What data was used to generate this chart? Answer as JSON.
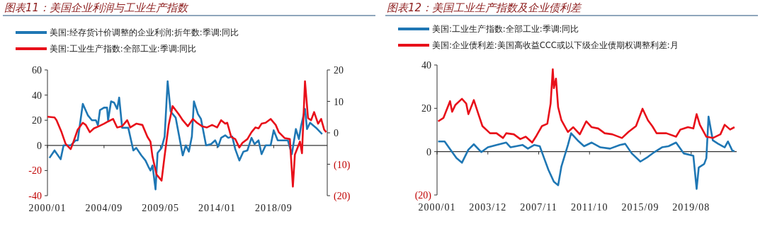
{
  "chart_data": [
    {
      "type": "line",
      "title": "图表11：美国企业利润与工业生产指数",
      "legend": "top left",
      "xlim": [
        "2000-01",
        "2023-02"
      ],
      "xticks": [
        {
          "value": "2000-01",
          "label": "2000/01"
        },
        {
          "value": "2004-09",
          "label": "2004/09"
        },
        {
          "value": "2009-05",
          "label": "2009/05"
        },
        {
          "value": "2014-01",
          "label": "2014/01"
        },
        {
          "value": "2018-09",
          "label": "2018/09"
        }
      ],
      "ylim": [
        -40,
        60
      ],
      "yticks": [
        -40,
        -20,
        0,
        20,
        40,
        60
      ],
      "y2lim": [
        -20,
        20
      ],
      "y2ticks": [
        {
          "value": -20,
          "label": "(20)"
        },
        {
          "value": -10,
          "label": "(10)"
        },
        0,
        10,
        20
      ],
      "series": [
        {
          "name": "美国:经存货计价调整的企业利润:折年数:季调:同比",
          "color": "#1f77b4",
          "x": [
            "2000-03",
            "2000-08",
            "2001-02",
            "2001-05",
            "2001-12",
            "2002-05",
            "2002-07",
            "2002-12",
            "2003-05",
            "2003-09",
            "2004-01",
            "2004-03",
            "2004-05",
            "2004-09",
            "2004-12",
            "2005-01",
            "2005-04",
            "2005-07",
            "2005-10",
            "2005-12",
            "2006-03",
            "2006-09",
            "2007-02",
            "2007-05",
            "2007-10",
            "2008-02",
            "2008-05",
            "2008-07",
            "2008-09",
            "2008-12",
            "2009-02",
            "2009-06",
            "2009-09",
            "2009-12",
            "2010-03",
            "2010-08",
            "2010-11",
            "2011-03",
            "2011-06",
            "2011-09",
            "2011-12",
            "2012-02",
            "2012-06",
            "2012-09",
            "2013-02",
            "2013-07",
            "2013-11",
            "2014-02",
            "2014-05",
            "2014-09",
            "2014-12",
            "2015-04",
            "2015-07",
            "2015-11",
            "2016-03",
            "2016-07",
            "2016-11",
            "2017-02",
            "2017-06",
            "2017-09",
            "2018-01",
            "2018-06",
            "2018-09",
            "2019-01",
            "2019-06",
            "2019-11",
            "2020-03",
            "2020-07",
            "2020-10",
            "2020-12",
            "2021-04",
            "2021-06",
            "2021-09",
            "2022-03",
            "2022-09"
          ],
          "values": [
            -10,
            -4,
            -11,
            0,
            0,
            4,
            4,
            33,
            24,
            20,
            20,
            16,
            28,
            30,
            30,
            20,
            35,
            34,
            29,
            38,
            14,
            14,
            -4,
            -2,
            -8,
            -12,
            -17,
            -20,
            -16,
            -35,
            -6,
            -2,
            7,
            51,
            27,
            22,
            9,
            -8,
            0,
            -5,
            7,
            35,
            25,
            21,
            0,
            1,
            4,
            -1,
            6,
            8,
            6,
            7,
            -3,
            -12,
            -5,
            -4,
            6,
            1,
            4,
            -7,
            0,
            0,
            12,
            4,
            4,
            4,
            -7,
            13,
            5,
            15,
            29,
            13,
            18,
            14,
            9
          ]
        },
        {
          "name": "美国:工业生产指数:全部工业:季调:同比",
          "color": "#e8101a",
          "axis": "y2",
          "x": [
            "2000-01",
            "2000-08",
            "2000-10",
            "2001-03",
            "2001-07",
            "2001-12",
            "2002-02",
            "2002-07",
            "2002-12",
            "2003-03",
            "2003-07",
            "2003-11",
            "2004-04",
            "2004-09",
            "2005-01",
            "2005-06",
            "2005-10",
            "2006-03",
            "2006-08",
            "2006-11",
            "2007-05",
            "2007-11",
            "2008-04",
            "2008-07",
            "2008-09",
            "2009-01",
            "2009-06",
            "2009-09",
            "2010-01",
            "2010-05",
            "2010-11",
            "2011-03",
            "2011-08",
            "2012-01",
            "2012-05",
            "2012-10",
            "2013-03",
            "2013-08",
            "2014-01",
            "2014-05",
            "2014-09",
            "2014-11",
            "2015-03",
            "2015-07",
            "2015-11",
            "2016-02",
            "2016-07",
            "2016-11",
            "2017-03",
            "2017-06",
            "2017-09",
            "2018-01",
            "2018-06",
            "2018-11",
            "2019-02",
            "2019-08",
            "2020-01",
            "2020-04",
            "2020-06",
            "2020-11",
            "2021-01",
            "2021-04",
            "2021-07",
            "2021-10",
            "2022-01",
            "2022-05",
            "2022-08",
            "2022-11",
            "2023-01"
          ],
          "values": [
            5.1,
            4.9,
            4,
            0.2,
            -3.5,
            -5.2,
            -3.5,
            1,
            3.2,
            2.5,
            0.2,
            1.4,
            2.1,
            2.9,
            3.6,
            4.4,
            1.7,
            2.1,
            4,
            1.7,
            2.9,
            2.5,
            -1.3,
            -2.8,
            -7.6,
            -13.3,
            -15.2,
            -7.3,
            2.5,
            8.5,
            5.9,
            4,
            2.1,
            4.4,
            3.2,
            2.1,
            1.7,
            2.5,
            1.7,
            4,
            2.9,
            3.2,
            -1.3,
            -2,
            -4.7,
            -3.2,
            -2,
            0.2,
            1.7,
            1.4,
            2.9,
            3.2,
            4.4,
            2.5,
            0.2,
            -1.7,
            -2,
            -17.1,
            -6.9,
            -2.8,
            -6.5,
            16.4,
            4.7,
            4,
            6.6,
            2.9,
            4.4,
            1,
            0.2
          ]
        }
      ]
    },
    {
      "type": "line",
      "title": "图表12：美国工业生产指数及企业债利差",
      "legend": "top left",
      "xlim": [
        "2000-01",
        "2023-02"
      ],
      "xticks": [
        {
          "value": "2000-01",
          "label": "2000/01"
        },
        {
          "value": "2003-12",
          "label": "2003/12"
        },
        {
          "value": "2007-11",
          "label": "2007/11"
        },
        {
          "value": "2011-10",
          "label": "2011/10"
        },
        {
          "value": "2015-09",
          "label": "2015/09"
        },
        {
          "value": "2019-08",
          "label": "2019/08"
        }
      ],
      "ylim": [
        -20,
        40
      ],
      "yticks": [
        {
          "value": -20,
          "label": "(20)"
        },
        0,
        20,
        40
      ],
      "series": [
        {
          "name": "美国:工业生产指数:全部工业:季调:同比",
          "color": "#1f77b4",
          "x": [
            "2000-02",
            "2000-08",
            "2001-03",
            "2001-07",
            "2001-12",
            "2002-06",
            "2002-11",
            "2003-06",
            "2003-12",
            "2004-08",
            "2005-05",
            "2005-09",
            "2006-08",
            "2007-01",
            "2007-07",
            "2007-12",
            "2008-04",
            "2008-08",
            "2009-01",
            "2009-05",
            "2009-08",
            "2010-02",
            "2010-05",
            "2010-11",
            "2011-05",
            "2011-12",
            "2012-08",
            "2013-05",
            "2014-02",
            "2014-07",
            "2015-01",
            "2015-09",
            "2016-04",
            "2016-10",
            "2017-05",
            "2017-11",
            "2018-06",
            "2019-01",
            "2019-10",
            "2020-01",
            "2020-03",
            "2020-08",
            "2020-10",
            "2020-12",
            "2021-04",
            "2021-09",
            "2022-03",
            "2022-06",
            "2022-10",
            "2022-12"
          ],
          "values": [
            4.7,
            4.7,
            -0.2,
            -3,
            -5.1,
            0.9,
            3.4,
            -0.2,
            2,
            3.1,
            4.2,
            2,
            3.1,
            1.4,
            3.1,
            2.5,
            -3,
            -8.4,
            -13.9,
            -15.5,
            -6.8,
            3.1,
            8.5,
            5.2,
            2.5,
            4.2,
            2,
            1.4,
            3.1,
            3.6,
            -0.8,
            -4.6,
            -2.4,
            -0.2,
            2,
            2.5,
            4.2,
            -0.8,
            -1.9,
            -17.2,
            -7.3,
            -5.7,
            -3,
            16.2,
            5.2,
            3.6,
            2,
            4.7,
            0.5,
            0.2
          ]
        },
        {
          "name": "美国:企业债利差:美国高收益CCC或以下级企业债期权调整利差:月",
          "color": "#e8101a",
          "x": [
            "2000-02",
            "2000-07",
            "2001-01",
            "2001-03",
            "2001-06",
            "2001-12",
            "2002-04",
            "2002-06",
            "2002-11",
            "2003-03",
            "2003-07",
            "2004-02",
            "2004-08",
            "2005-02",
            "2005-05",
            "2005-12",
            "2006-06",
            "2006-11",
            "2007-05",
            "2007-09",
            "2008-02",
            "2008-07",
            "2008-10",
            "2008-12",
            "2009-01",
            "2009-03",
            "2009-05",
            "2009-08",
            "2010-02",
            "2010-07",
            "2011-01",
            "2011-07",
            "2011-12",
            "2012-06",
            "2012-12",
            "2013-07",
            "2014-04",
            "2014-10",
            "2015-05",
            "2015-11",
            "2016-04",
            "2016-08",
            "2016-12",
            "2017-09",
            "2018-06",
            "2018-10",
            "2019-05",
            "2019-10",
            "2020-01",
            "2020-04",
            "2020-10",
            "2021-04",
            "2021-11",
            "2022-03",
            "2022-08",
            "2022-12"
          ],
          "values": [
            14,
            15.6,
            23.3,
            18.4,
            21.6,
            24.4,
            22.2,
            17.3,
            23.8,
            17.8,
            11.8,
            8.5,
            8.5,
            6.3,
            8.5,
            8,
            5.8,
            6.9,
            4.2,
            7.4,
            11.8,
            12.9,
            22.2,
            38,
            29.3,
            33.7,
            20.5,
            14.5,
            9.1,
            11.3,
            8,
            14,
            11.3,
            10.7,
            8.5,
            8,
            6.3,
            9.1,
            11.8,
            19.8,
            14.5,
            11.8,
            8.5,
            8.5,
            6.9,
            10.2,
            11.3,
            10.7,
            17.3,
            12.4,
            6.9,
            6.3,
            8,
            12.4,
            10.2,
            11.3
          ]
        }
      ]
    }
  ]
}
